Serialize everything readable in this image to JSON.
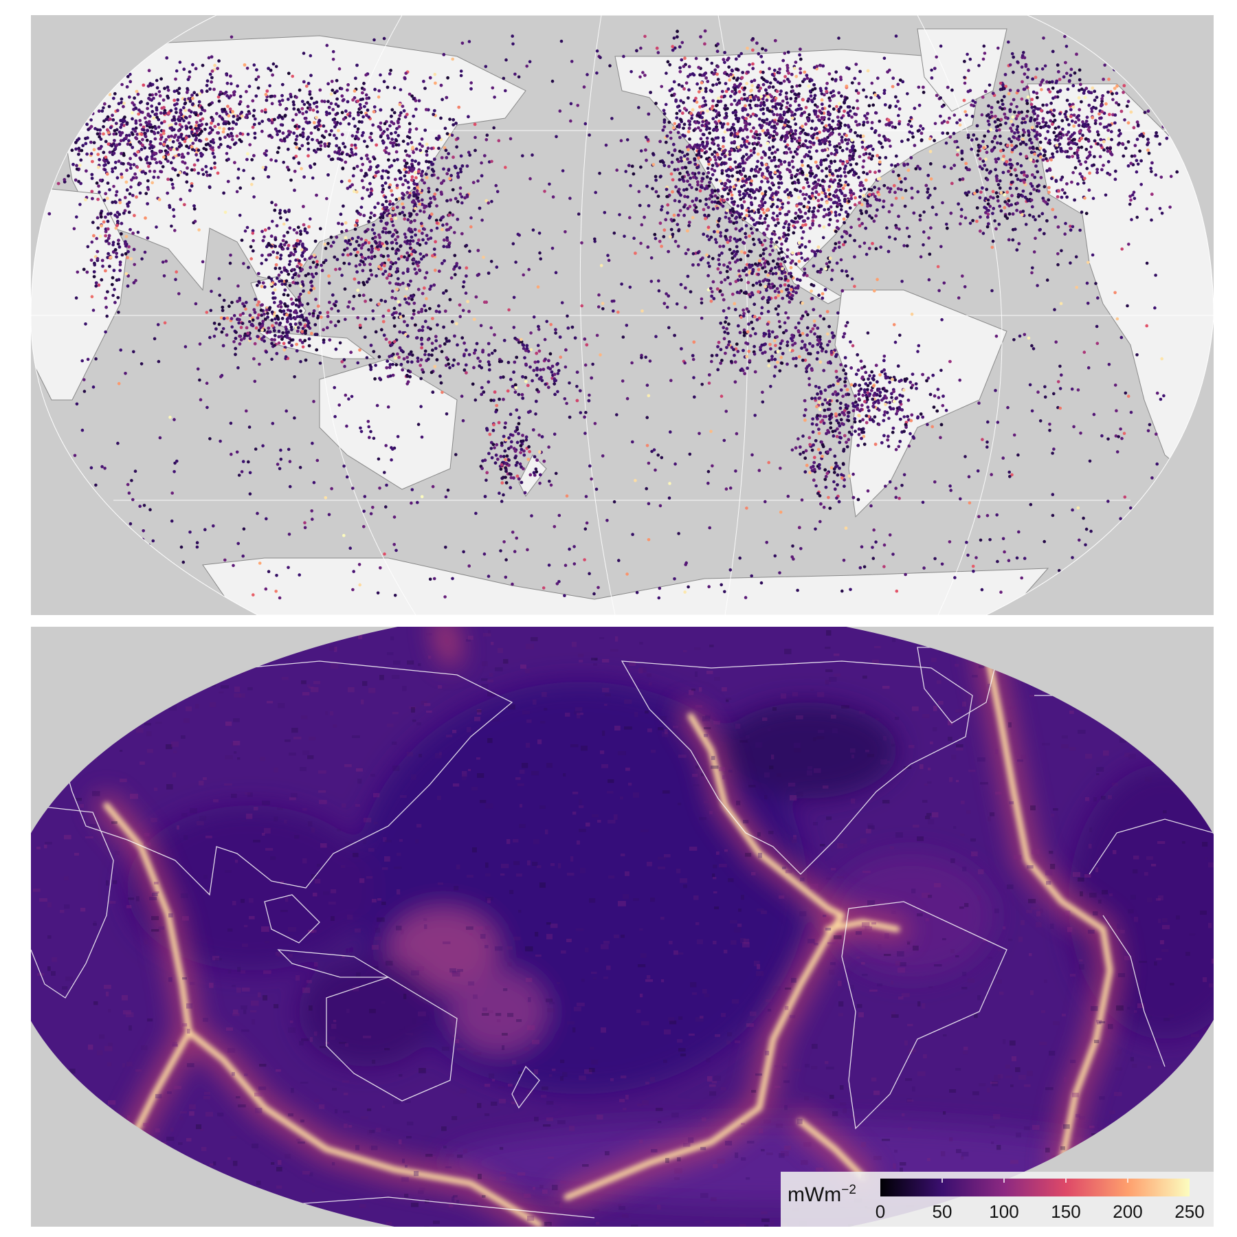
{
  "panels": {
    "top": {
      "type": "point-map",
      "projection": "robinson",
      "center_longitude": 150
    },
    "bottom": {
      "type": "raster-map",
      "projection": "robinson",
      "center_longitude": 150
    }
  },
  "colors": {
    "ocean": "#cccccc",
    "land": "#f2f2f2",
    "graticule": "#ffffff",
    "coast_top": "#888888",
    "coast_bottom": "#ffffff",
    "colormap": [
      "#000004",
      "#3b0f70",
      "#8c2981",
      "#de4968",
      "#fe9f6d",
      "#fcfdbf"
    ]
  },
  "legend": {
    "unit": "mWm",
    "unit_exponent": "−2",
    "ticks": [
      "0",
      "50",
      "100",
      "150",
      "200",
      "250"
    ],
    "range": [
      0,
      250
    ]
  }
}
